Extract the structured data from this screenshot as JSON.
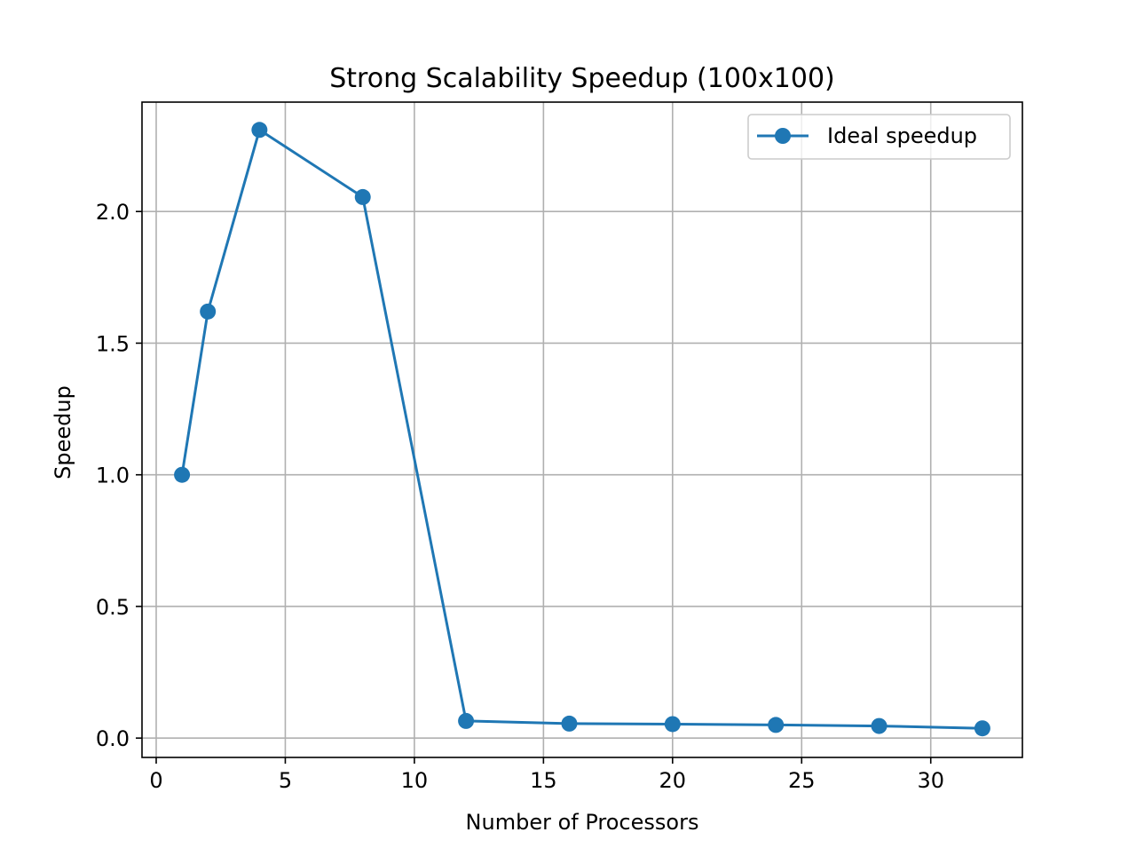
{
  "chart_data": {
    "type": "line",
    "title": "Strong Scalability Speedup (100x100)",
    "xlabel": "Number of Processors",
    "ylabel": "Speedup",
    "xlim": [
      -0.55,
      33.55
    ],
    "ylim": [
      -0.0735,
      2.4155
    ],
    "x_ticks": [
      0,
      5,
      10,
      15,
      20,
      25,
      30
    ],
    "y_ticks": [
      0.0,
      0.5,
      1.0,
      1.5,
      2.0
    ],
    "x_tick_labels": [
      "0",
      "5",
      "10",
      "15",
      "20",
      "25",
      "30"
    ],
    "y_tick_labels": [
      "0.0",
      "0.5",
      "1.0",
      "1.5",
      "2.0"
    ],
    "grid": true,
    "legend_position": "top-right",
    "series": [
      {
        "name": "Ideal speedup",
        "color": "#1f77b4",
        "marker": "circle",
        "x": [
          1,
          2,
          4,
          8,
          12,
          16,
          20,
          24,
          28,
          32
        ],
        "y": [
          1.0,
          1.62,
          2.31,
          2.055,
          0.065,
          0.055,
          0.053,
          0.05,
          0.046,
          0.037
        ]
      }
    ]
  }
}
